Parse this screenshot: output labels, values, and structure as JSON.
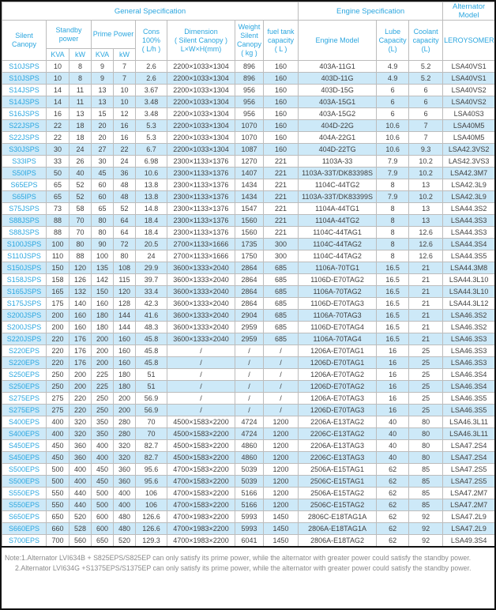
{
  "colors": {
    "accent": "#2ba6df",
    "row_alt": "#cde9f8",
    "grid": "#bcbcbc",
    "text": "#404040",
    "note": "#8a8a8a",
    "border": "#111111"
  },
  "table": {
    "header": {
      "general_spec": "General Specification",
      "engine_spec": "Engine Specification",
      "alternator_model": "Alternator Model",
      "silent_canopy": "Silent\nCanopy",
      "standby_power": "Standby\npower",
      "prime_power": "Prime Power",
      "standby_kva": "KVA",
      "standby_kw": "kW",
      "prime_kva": "KVA",
      "prime_kw": "kW",
      "cons": "Cons\n100%\n( L/h )",
      "dimension": "Dimension\n( Silent Canopy )\nL×W×H(mm)",
      "weight": "Weight\nSilent\nCanopy\n( kg )",
      "fuel_tank": "fuel tank\ncapacity\n( L )",
      "engine_model": "Engine Model",
      "lube": "Lube\nCapacity\n(L)",
      "coolant": "Coolant\ncapacity\n(L)",
      "leroysomer": "LEROYSOMER"
    },
    "columns": [
      "model",
      "standby_kva",
      "standby_kw",
      "prime_kva",
      "prime_kw",
      "cons_100_lh",
      "dimension_lwh_mm",
      "weight_kg",
      "fuel_tank_l",
      "engine_model",
      "lube_capacity_l",
      "coolant_capacity_l",
      "alternator_model"
    ],
    "rows": [
      [
        "S10JSPS",
        "10",
        "8",
        "9",
        "7",
        "2.6",
        "2200×1033×1304",
        "896",
        "160",
        "403A-11G1",
        "4.9",
        "5.2",
        "LSA40VS1"
      ],
      [
        "S10JSPS",
        "10",
        "8",
        "9",
        "7",
        "2.6",
        "2200×1033×1304",
        "896",
        "160",
        "403D-11G",
        "4.9",
        "5.2",
        "LSA40VS1"
      ],
      [
        "S14JSPS",
        "14",
        "11",
        "13",
        "10",
        "3.67",
        "2200×1033×1304",
        "956",
        "160",
        "403D-15G",
        "6",
        "6",
        "LSA40VS2"
      ],
      [
        "S14JSPS",
        "14",
        "11",
        "13",
        "10",
        "3.48",
        "2200×1033×1304",
        "956",
        "160",
        "403A-15G1",
        "6",
        "6",
        "LSA40VS2"
      ],
      [
        "S16JSPS",
        "16",
        "13",
        "15",
        "12",
        "3.48",
        "2200×1033×1304",
        "956",
        "160",
        "403A-15G2",
        "6",
        "6",
        "LSA40S3"
      ],
      [
        "S22JSPS",
        "22",
        "18",
        "20",
        "16",
        "5.3",
        "2200×1033×1304",
        "1070",
        "160",
        "404D-22G",
        "10.6",
        "7",
        "LSA40M5"
      ],
      [
        "S22JSPS",
        "22",
        "18",
        "20",
        "16",
        "5.3",
        "2200×1033×1304",
        "1070",
        "160",
        "404A-22G1",
        "10.6",
        "7",
        "LSA40M5"
      ],
      [
        "S30JSPS",
        "30",
        "24",
        "27",
        "22",
        "6.7",
        "2200×1033×1304",
        "1087",
        "160",
        "404D-22TG",
        "10.6",
        "9.3",
        "LSA42.3VS2"
      ],
      [
        "S33IPS",
        "33",
        "26",
        "30",
        "24",
        "6.98",
        "2300×1133×1376",
        "1270",
        "221",
        "1103A-33",
        "7.9",
        "10.2",
        "LAS42.3VS3"
      ],
      [
        "S50IPS",
        "50",
        "40",
        "45",
        "36",
        "10.6",
        "2300×1133×1376",
        "1407",
        "221",
        "1103A-33T/DK83398S",
        "7.9",
        "10.2",
        "LSA42.3M7"
      ],
      [
        "S65EPS",
        "65",
        "52",
        "60",
        "48",
        "13.8",
        "2300×1133×1376",
        "1434",
        "221",
        "1104C-44TG2",
        "8",
        "13",
        "LSA42.3L9"
      ],
      [
        "S65IPS",
        "65",
        "52",
        "60",
        "48",
        "13.8",
        "2300×1133×1376",
        "1434",
        "221",
        "1103A-33T/DK83399S",
        "7.9",
        "10.2",
        "LSA42.3L9"
      ],
      [
        "S75JSPS",
        "73",
        "58",
        "65",
        "52",
        "14.8",
        "2300×1133×1376",
        "1547",
        "221",
        "1104A-44TG1",
        "8",
        "13",
        "LSA44.3S2"
      ],
      [
        "S88JSPS",
        "88",
        "70",
        "80",
        "64",
        "18.4",
        "2300×1133×1376",
        "1560",
        "221",
        "1104A-44TG2",
        "8",
        "13",
        "LSA44.3S3"
      ],
      [
        "S88JSPS",
        "88",
        "70",
        "80",
        "64",
        "18.4",
        "2300×1133×1376",
        "1560",
        "221",
        "1104C-44TAG1",
        "8",
        "12.6",
        "LSA44.3S3"
      ],
      [
        "S100JSPS",
        "100",
        "80",
        "90",
        "72",
        "20.5",
        "2700×1133×1666",
        "1735",
        "300",
        "1104C-44TAG2",
        "8",
        "12.6",
        "LSA44.3S4"
      ],
      [
        "S110JSPS",
        "110",
        "88",
        "100",
        "80",
        "24",
        "2700×1133×1666",
        "1750",
        "300",
        "1104C-44TAG2",
        "8",
        "12.6",
        "LSA44.3S5"
      ],
      [
        "S150JSPS",
        "150",
        "120",
        "135",
        "108",
        "29.9",
        "3600×1333×2040",
        "2864",
        "685",
        "1106A-70TG1",
        "16.5",
        "21",
        "LSA44.3M8"
      ],
      [
        "S158JSPS",
        "158",
        "126",
        "142",
        "115",
        "39.7",
        "3600×1333×2040",
        "2864",
        "685",
        "1106D-E70TAG2",
        "16.5",
        "21",
        "LSA44.3L10"
      ],
      [
        "S165JSPS",
        "165",
        "132",
        "150",
        "120",
        "33.4",
        "3600×1333×2040",
        "2864",
        "685",
        "1106A-70TAG2",
        "16.5",
        "21",
        "LSA44.3L10"
      ],
      [
        "S175JSPS",
        "175",
        "140",
        "160",
        "128",
        "42.3",
        "3600×1333×2040",
        "2864",
        "685",
        "1106D-E70TAG3",
        "16.5",
        "21",
        "LSA44.3L12"
      ],
      [
        "S200JSPS",
        "200",
        "160",
        "180",
        "144",
        "41.6",
        "3600×1333×2040",
        "2904",
        "685",
        "1106A-70TAG3",
        "16.5",
        "21",
        "LSA46.3S2"
      ],
      [
        "S200JSPS",
        "200",
        "160",
        "180",
        "144",
        "48.3",
        "3600×1333×2040",
        "2959",
        "685",
        "1106D-E70TAG4",
        "16.5",
        "21",
        "LSA46.3S2"
      ],
      [
        "S220JSPS",
        "220",
        "176",
        "200",
        "160",
        "45.8",
        "3600×1333×2040",
        "2959",
        "685",
        "1106A-70TAG4",
        "16.5",
        "21",
        "LSA46.3S3"
      ],
      [
        "S220EPS",
        "220",
        "176",
        "200",
        "160",
        "45.8",
        "/",
        "/",
        "/",
        "1206A-E70TAG1",
        "16",
        "25",
        "LSA46.3S3"
      ],
      [
        "S220EPS",
        "220",
        "176",
        "200",
        "160",
        "45.8",
        "/",
        "/",
        "/",
        "1206D-E70TAG1",
        "16",
        "25",
        "LSA46.3S3"
      ],
      [
        "S250EPS",
        "250",
        "200",
        "225",
        "180",
        "51",
        "/",
        "/",
        "/",
        "1206A-E70TAG2",
        "16",
        "25",
        "LSA46.3S4"
      ],
      [
        "S250EPS",
        "250",
        "200",
        "225",
        "180",
        "51",
        "/",
        "/",
        "/",
        "1206D-E70TAG2",
        "16",
        "25",
        "LSA46.3S4"
      ],
      [
        "S275EPS",
        "275",
        "220",
        "250",
        "200",
        "56.9",
        "/",
        "/",
        "/",
        "1206A-E70TAG3",
        "16",
        "25",
        "LSA46.3S5"
      ],
      [
        "S275EPS",
        "275",
        "220",
        "250",
        "200",
        "56.9",
        "/",
        "/",
        "/",
        "1206D-E70TAG3",
        "16",
        "25",
        "LSA46.3S5"
      ],
      [
        "S400EPS",
        "400",
        "320",
        "350",
        "280",
        "70",
        "4500×1583×2200",
        "4724",
        "1200",
        "2206A-E13TAG2",
        "40",
        "80",
        "LSA46.3L11"
      ],
      [
        "S400EPS",
        "400",
        "320",
        "350",
        "280",
        "70",
        "4500×1583×2200",
        "4724",
        "1200",
        "2206C-E13TAG2",
        "40",
        "80",
        "LSA46.3L11"
      ],
      [
        "S450EPS",
        "450",
        "360",
        "400",
        "320",
        "82.7",
        "4500×1583×2200",
        "4860",
        "1200",
        "2206A-E13TAG3",
        "40",
        "80",
        "LSA47.2S4"
      ],
      [
        "S450EPS",
        "450",
        "360",
        "400",
        "320",
        "82.7",
        "4500×1583×2200",
        "4860",
        "1200",
        "2206C-E13TAG3",
        "40",
        "80",
        "LSA47.2S4"
      ],
      [
        "S500EPS",
        "500",
        "400",
        "450",
        "360",
        "95.6",
        "4700×1583×2200",
        "5039",
        "1200",
        "2506A-E15TAG1",
        "62",
        "85",
        "LSA47.2S5"
      ],
      [
        "S500EPS",
        "500",
        "400",
        "450",
        "360",
        "95.6",
        "4700×1583×2200",
        "5039",
        "1200",
        "2506C-E15TAG1",
        "62",
        "85",
        "LSA47.2S5"
      ],
      [
        "S550EPS",
        "550",
        "440",
        "500",
        "400",
        "106",
        "4700×1583×2200",
        "5166",
        "1200",
        "2506A-E15TAG2",
        "62",
        "85",
        "LSA47.2M7"
      ],
      [
        "S550EPS",
        "550",
        "440",
        "500",
        "400",
        "106",
        "4700×1583×2200",
        "5166",
        "1200",
        "2506C-E15TAG2",
        "62",
        "85",
        "LSA47.2M7"
      ],
      [
        "S650EPS",
        "650",
        "520",
        "600",
        "480",
        "126.6",
        "4700×1983×2200",
        "5993",
        "1450",
        "2806C-E18TAG1A",
        "62",
        "92",
        "LSA47.2L9"
      ],
      [
        "S660EPS",
        "660",
        "528",
        "600",
        "480",
        "126.6",
        "4700×1983×2200",
        "5993",
        "1450",
        "2806A-E18TAG1A",
        "62",
        "92",
        "LSA47.2L9"
      ],
      [
        "S700EPS",
        "700",
        "560",
        "650",
        "520",
        "129.3",
        "4700×1983×2200",
        "6041",
        "1450",
        "2806A-E18TAG2",
        "62",
        "92",
        "LSA49.3S4"
      ]
    ]
  },
  "notes": {
    "line1": "Note:1.Alternator LVI634B + S825EPS/S825EP can only satisfy its prime power, while the alternator with greater power could satisfy the standby power.",
    "line2": "2.Alternator LVI634G +S1375EPS/S1375EP can only satisfy its prime power, while the alternator with greater power could satisfy the standby power."
  }
}
